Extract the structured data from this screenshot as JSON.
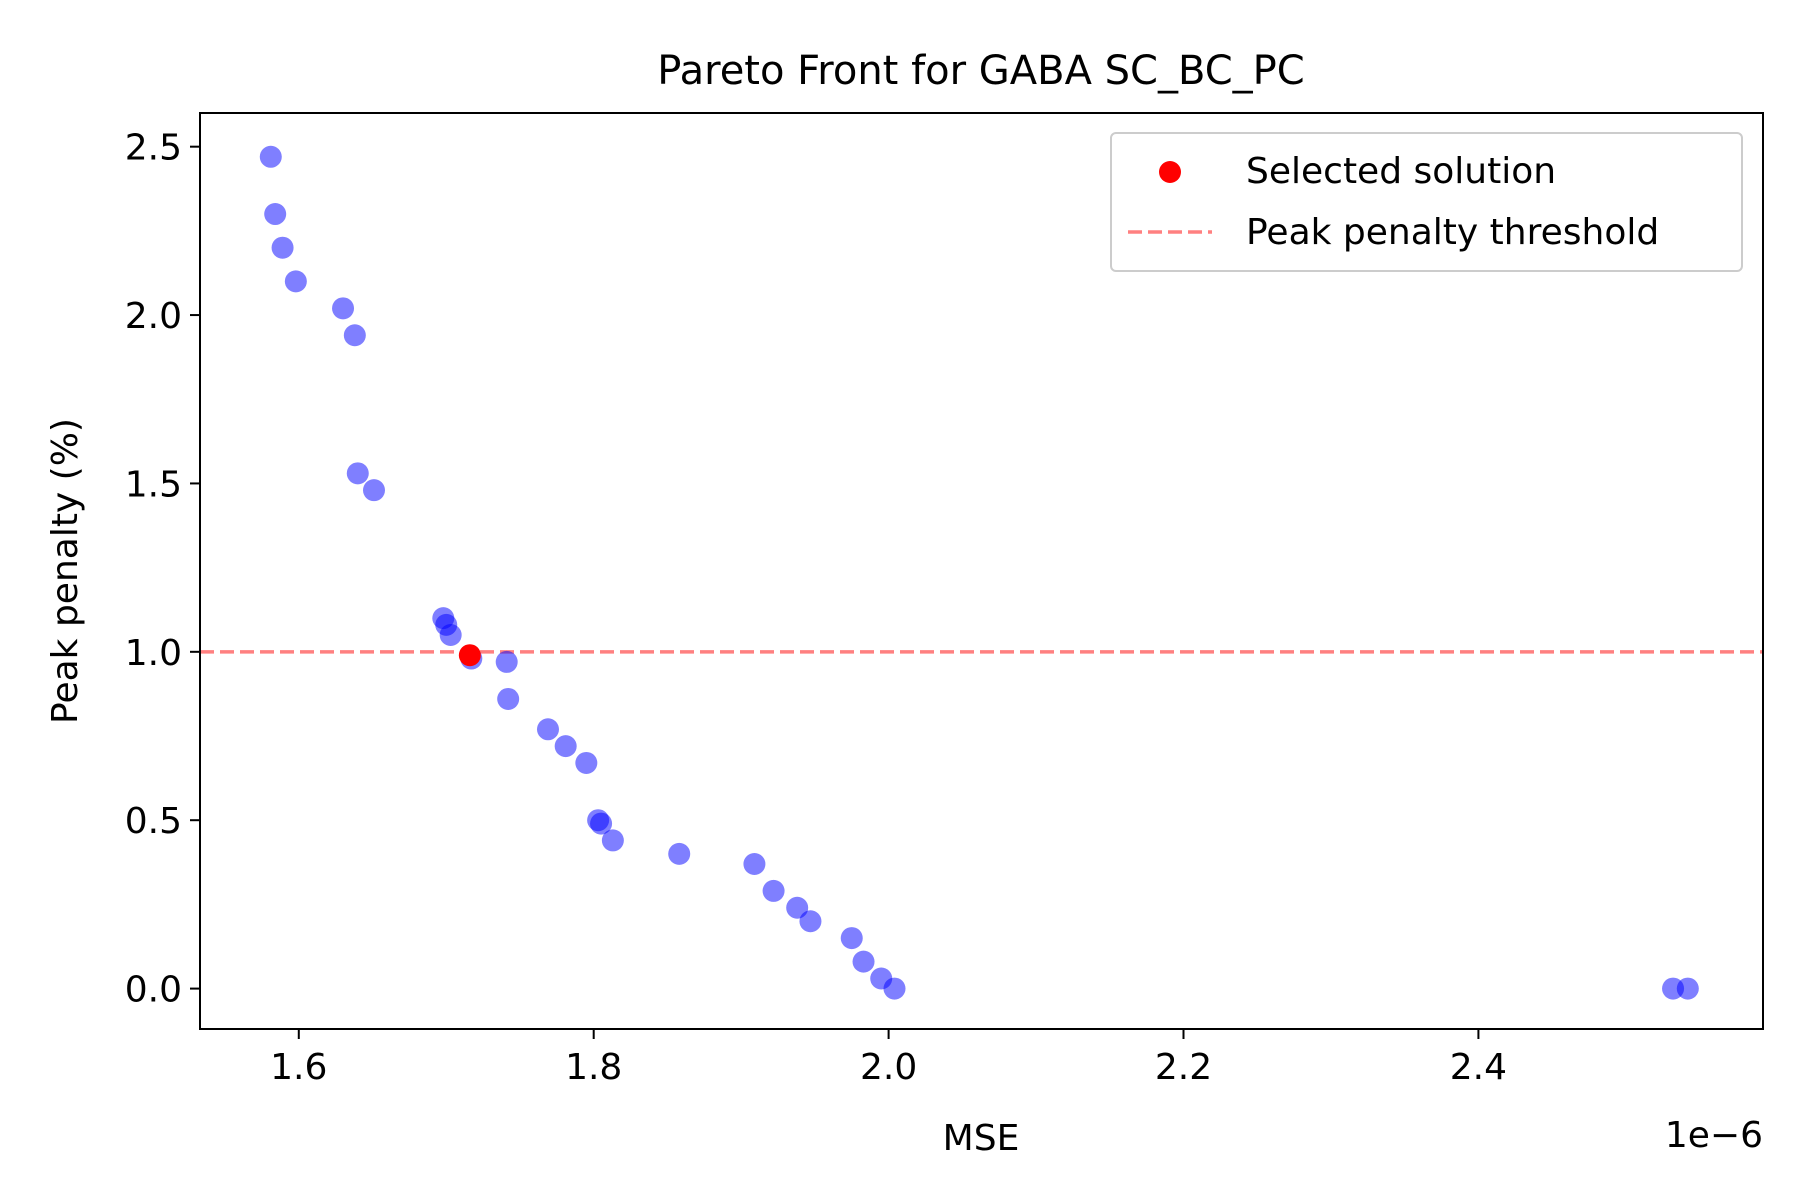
{
  "chart_data": {
    "type": "scatter",
    "title": "Pareto Front for GABA  SC_BC_PC",
    "xlabel": "MSE",
    "ylabel": "Peak penalty (%)",
    "x_offset_label": "1e−6",
    "xlim": [
      1.533e-06,
      2.593e-06
    ],
    "ylim": [
      -0.12,
      2.6
    ],
    "xticks": [
      1.6e-06,
      1.8e-06,
      2e-06,
      2.2e-06,
      2.4e-06
    ],
    "xtick_labels": [
      "1.6",
      "1.8",
      "2.0",
      "2.2",
      "2.4"
    ],
    "yticks": [
      0.0,
      0.5,
      1.0,
      1.5,
      2.0,
      2.5
    ],
    "ytick_labels": [
      "0.0",
      "0.5",
      "1.0",
      "1.5",
      "2.0",
      "2.5"
    ],
    "grid": false,
    "legend_position": "top-right",
    "series": [
      {
        "name": "",
        "color": "#7a7af5",
        "points": [
          [
            1.581e-06,
            2.47
          ],
          [
            1.584e-06,
            2.3
          ],
          [
            1.589e-06,
            2.2
          ],
          [
            1.598e-06,
            2.1
          ],
          [
            1.63e-06,
            2.02
          ],
          [
            1.638e-06,
            1.94
          ],
          [
            1.64e-06,
            1.53
          ],
          [
            1.651e-06,
            1.48
          ],
          [
            1.698e-06,
            1.1
          ],
          [
            1.7e-06,
            1.08
          ],
          [
            1.703e-06,
            1.05
          ],
          [
            1.717e-06,
            0.98
          ],
          [
            1.741e-06,
            0.97
          ],
          [
            1.742e-06,
            0.86
          ],
          [
            1.769e-06,
            0.77
          ],
          [
            1.781e-06,
            0.72
          ],
          [
            1.795e-06,
            0.67
          ],
          [
            1.803e-06,
            0.5
          ],
          [
            1.805e-06,
            0.49
          ],
          [
            1.813e-06,
            0.44
          ],
          [
            1.858e-06,
            0.4
          ],
          [
            1.909e-06,
            0.37
          ],
          [
            1.922e-06,
            0.29
          ],
          [
            1.938e-06,
            0.24
          ],
          [
            1.947e-06,
            0.2
          ],
          [
            1.975e-06,
            0.15
          ],
          [
            1.983e-06,
            0.08
          ],
          [
            1.995e-06,
            0.03
          ],
          [
            2.004e-06,
            0.0
          ],
          [
            2.532e-06,
            0.0
          ],
          [
            2.542e-06,
            0.0
          ]
        ]
      },
      {
        "name": "Selected solution",
        "color": "#ff0000",
        "points": [
          [
            1.716e-06,
            0.99
          ]
        ]
      }
    ],
    "threshold": {
      "name": "Peak penalty threshold",
      "y": 1.0,
      "color": "#ff8080",
      "style": "dashed"
    }
  }
}
